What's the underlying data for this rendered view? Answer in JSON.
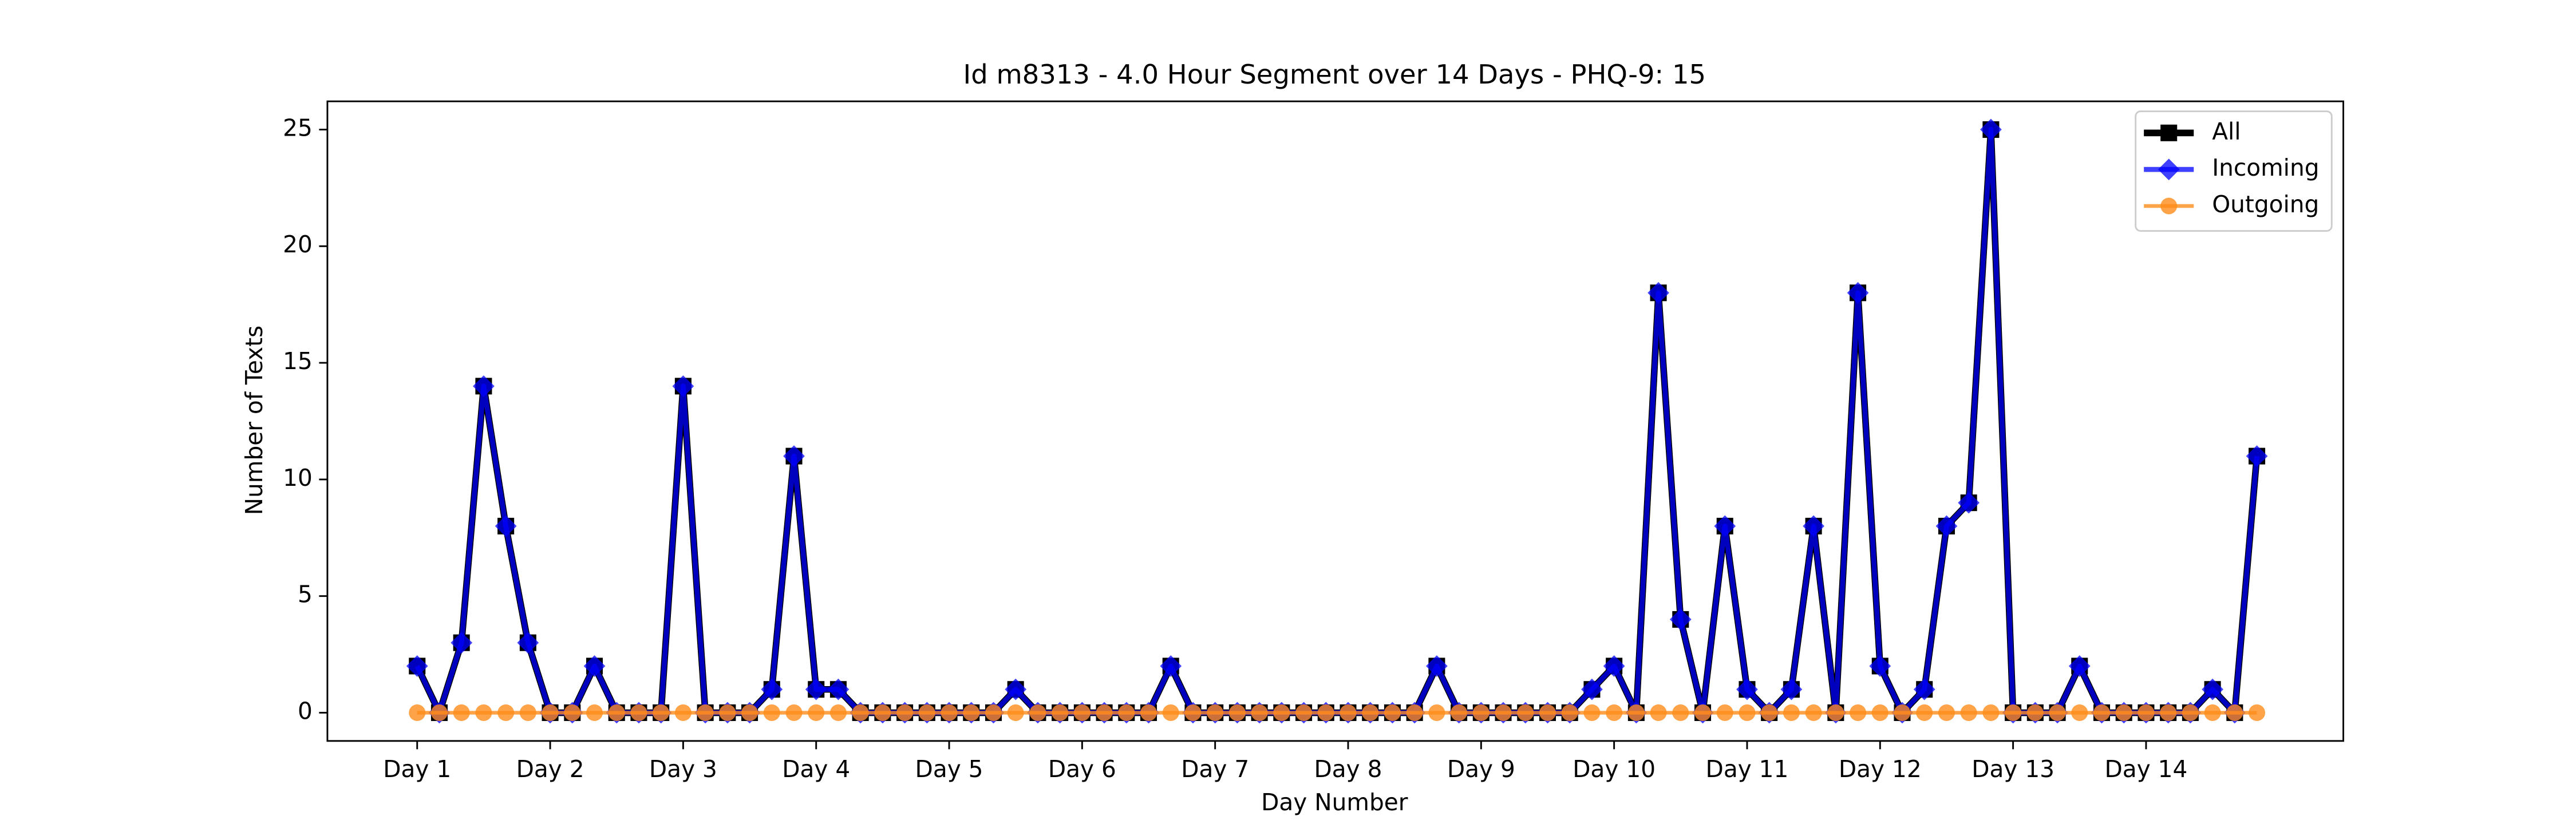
{
  "chart_data": {
    "type": "line",
    "title": "Id m8313 - 4.0 Hour Segment over 14 Days - PHQ-9: 15",
    "xlabel": "Day Number",
    "ylabel": "Number of Texts",
    "x": [
      0,
      1,
      2,
      3,
      4,
      5,
      6,
      7,
      8,
      9,
      10,
      11,
      12,
      13,
      14,
      15,
      16,
      17,
      18,
      19,
      20,
      21,
      22,
      23,
      24,
      25,
      26,
      27,
      28,
      29,
      30,
      31,
      32,
      33,
      34,
      35,
      36,
      37,
      38,
      39,
      40,
      41,
      42,
      43,
      44,
      45,
      46,
      47,
      48,
      49,
      50,
      51,
      52,
      53,
      54,
      55,
      56,
      57,
      58,
      59,
      60,
      61,
      62,
      63,
      64,
      65,
      66,
      67,
      68,
      69,
      70,
      71,
      72,
      73,
      74,
      75,
      76,
      77,
      78,
      79,
      80,
      81,
      82,
      83
    ],
    "series": [
      {
        "name": "All",
        "color": "#000000",
        "alpha": 1,
        "marker": "square",
        "values": [
          2,
          0,
          3,
          14,
          8,
          3,
          0,
          0,
          2,
          0,
          0,
          0,
          14,
          0,
          0,
          0,
          1,
          11,
          1,
          1,
          0,
          0,
          0,
          0,
          0,
          0,
          0,
          1,
          0,
          0,
          0,
          0,
          0,
          0,
          2,
          0,
          0,
          0,
          0,
          0,
          0,
          0,
          0,
          0,
          0,
          0,
          2,
          0,
          0,
          0,
          0,
          0,
          0,
          1,
          2,
          0,
          18,
          4,
          0,
          8,
          1,
          0,
          1,
          8,
          0,
          18,
          2,
          0,
          1,
          8,
          9,
          25,
          0,
          0,
          0,
          2,
          0,
          0,
          0,
          0,
          0,
          1,
          0,
          11
        ]
      },
      {
        "name": "Incoming",
        "color": "#0000ff",
        "alpha": 0.75,
        "marker": "diamond",
        "values": [
          2,
          0,
          3,
          14,
          8,
          3,
          0,
          0,
          2,
          0,
          0,
          0,
          14,
          0,
          0,
          0,
          1,
          11,
          1,
          1,
          0,
          0,
          0,
          0,
          0,
          0,
          0,
          1,
          0,
          0,
          0,
          0,
          0,
          0,
          2,
          0,
          0,
          0,
          0,
          0,
          0,
          0,
          0,
          0,
          0,
          0,
          2,
          0,
          0,
          0,
          0,
          0,
          0,
          1,
          2,
          0,
          18,
          4,
          0,
          8,
          1,
          0,
          1,
          8,
          0,
          18,
          2,
          0,
          1,
          8,
          9,
          25,
          0,
          0,
          0,
          2,
          0,
          0,
          0,
          0,
          0,
          1,
          0,
          11
        ]
      },
      {
        "name": "Outgoing",
        "color": "#ff8c1a",
        "alpha": 0.8,
        "marker": "circle",
        "values": [
          0,
          0,
          0,
          0,
          0,
          0,
          0,
          0,
          0,
          0,
          0,
          0,
          0,
          0,
          0,
          0,
          0,
          0,
          0,
          0,
          0,
          0,
          0,
          0,
          0,
          0,
          0,
          0,
          0,
          0,
          0,
          0,
          0,
          0,
          0,
          0,
          0,
          0,
          0,
          0,
          0,
          0,
          0,
          0,
          0,
          0,
          0,
          0,
          0,
          0,
          0,
          0,
          0,
          0,
          0,
          0,
          0,
          0,
          0,
          0,
          0,
          0,
          0,
          0,
          0,
          0,
          0,
          0,
          0,
          0,
          0,
          0,
          0,
          0,
          0,
          0,
          0,
          0,
          0,
          0,
          0,
          0,
          0,
          0
        ]
      }
    ],
    "xlim": [
      -4.05,
      86.9
    ],
    "xticks": [
      {
        "value": 0,
        "label": "Day 1"
      },
      {
        "value": 6,
        "label": "Day 2"
      },
      {
        "value": 12,
        "label": "Day 3"
      },
      {
        "value": 18,
        "label": "Day 4"
      },
      {
        "value": 24,
        "label": "Day 5"
      },
      {
        "value": 30,
        "label": "Day 6"
      },
      {
        "value": 36,
        "label": "Day 7"
      },
      {
        "value": 42,
        "label": "Day 8"
      },
      {
        "value": 48,
        "label": "Day 9"
      },
      {
        "value": 54,
        "label": "Day 10"
      },
      {
        "value": 60,
        "label": "Day 11"
      },
      {
        "value": 66,
        "label": "Day 12"
      },
      {
        "value": 72,
        "label": "Day 13"
      },
      {
        "value": 78,
        "label": "Day 14"
      }
    ],
    "ylim": [
      -1.21,
      26.21
    ],
    "yticks": [
      0,
      5,
      10,
      15,
      20,
      25
    ],
    "grid": false,
    "legend": "upper right"
  }
}
